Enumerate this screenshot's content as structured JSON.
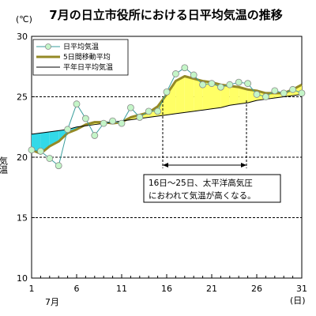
{
  "chart_data": {
    "type": "line",
    "title": "7月の日立市役所における日平均気温の推移",
    "ylabel": "気温",
    "y_unit": "(℃)",
    "x_unit": "(日)",
    "month_label": "7月",
    "ylim": [
      10,
      30
    ],
    "xlim": [
      1,
      31
    ],
    "y_ticks": [
      10,
      15,
      20,
      25,
      30
    ],
    "x_ticks": [
      1,
      6,
      11,
      16,
      21,
      26,
      31
    ],
    "dashed_gridlines": [
      15,
      20,
      25
    ],
    "legend_position": "top-left",
    "x": [
      1,
      2,
      3,
      4,
      5,
      6,
      7,
      8,
      9,
      10,
      11,
      12,
      13,
      14,
      15,
      16,
      17,
      18,
      19,
      20,
      21,
      22,
      23,
      24,
      25,
      26,
      27,
      28,
      29,
      30,
      31
    ],
    "series": [
      {
        "name": "日平均気温",
        "color": "#3a9e9c",
        "marker_fill": "#c4f5c8",
        "values": [
          20.6,
          20.5,
          19.9,
          19.3,
          22.3,
          24.4,
          23.2,
          21.8,
          22.8,
          23.0,
          22.8,
          24.1,
          23.3,
          23.8,
          23.8,
          25.4,
          26.9,
          27.4,
          26.8,
          26.0,
          26.1,
          25.8,
          26.0,
          26.2,
          26.1,
          25.2,
          25.0,
          25.5,
          25.3,
          25.6,
          25.3
        ]
      },
      {
        "name": "5日間移動平均",
        "color": "#948a26",
        "values": [
          20.6,
          20.3,
          20.9,
          21.3,
          22.0,
          22.3,
          22.7,
          22.9,
          22.9,
          22.8,
          22.9,
          23.3,
          23.5,
          23.7,
          24.2,
          25.2,
          26.3,
          26.7,
          26.5,
          26.3,
          26.2,
          26.0,
          25.9,
          25.8,
          25.6,
          25.5,
          25.3,
          25.3,
          25.3,
          25.6,
          26.0
        ]
      },
      {
        "name": "平年日平均気温",
        "color": "#000000",
        "values": [
          21.9,
          22.0,
          22.1,
          22.2,
          22.3,
          22.5,
          22.6,
          22.7,
          22.8,
          22.9,
          23.0,
          23.1,
          23.2,
          23.3,
          23.4,
          23.5,
          23.6,
          23.7,
          23.8,
          23.9,
          24.0,
          24.1,
          24.3,
          24.4,
          24.5,
          24.7,
          24.8,
          24.9,
          25.0,
          25.1,
          25.2
        ]
      }
    ],
    "fills": [
      {
        "name": "below-normal",
        "color": "#33d9e8",
        "from_series": "5日間移動平均",
        "to_series": "平年日平均気温"
      },
      {
        "name": "above-normal",
        "color": "#ffff66",
        "from_series": "5日間移動平均",
        "to_series": "平年日平均気温"
      }
    ],
    "annotation": {
      "lines": [
        "16日～25日、太平洋高気圧",
        "におわれて気温が高くなる。"
      ],
      "range_start": 16,
      "range_end": 25
    }
  }
}
